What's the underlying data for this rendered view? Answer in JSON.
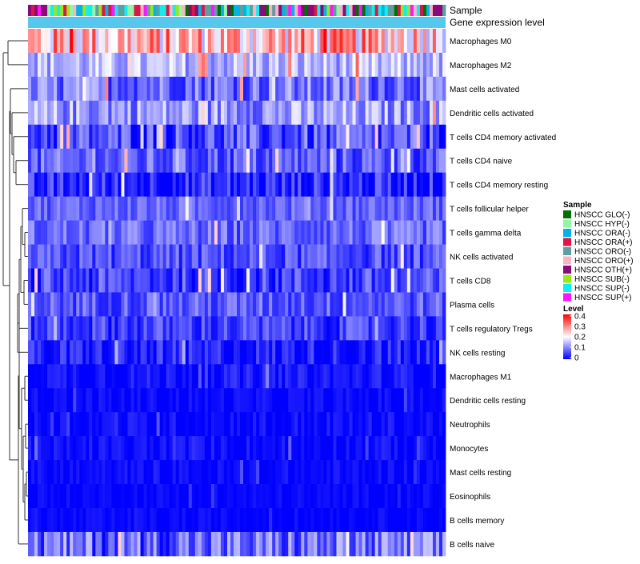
{
  "chart_data": {
    "type": "heatmap",
    "title": "",
    "annotation_tracks": [
      "Sample",
      "Gene expression level"
    ],
    "n_samples": 130,
    "rows": [
      {
        "label": "Macrophages M0",
        "base": 0.25,
        "noise": 0.12
      },
      {
        "label": "Macrophages M2",
        "base": 0.14,
        "noise": 0.06
      },
      {
        "label": "Mast cells activated",
        "base": 0.09,
        "noise": 0.07
      },
      {
        "label": "Dendritic cells activated",
        "base": 0.12,
        "noise": 0.07
      },
      {
        "label": "T cells CD4 memory activated",
        "base": 0.06,
        "noise": 0.07
      },
      {
        "label": "T cells CD4 naive",
        "base": 0.07,
        "noise": 0.06
      },
      {
        "label": "T cells CD4 memory resting",
        "base": 0.03,
        "noise": 0.06
      },
      {
        "label": "T cells follicular helper",
        "base": 0.08,
        "noise": 0.04
      },
      {
        "label": "T cells gamma delta",
        "base": 0.08,
        "noise": 0.05
      },
      {
        "label": "NK cells activated",
        "base": 0.06,
        "noise": 0.05
      },
      {
        "label": "T cells CD8",
        "base": 0.05,
        "noise": 0.06
      },
      {
        "label": "Plasma cells",
        "base": 0.07,
        "noise": 0.05
      },
      {
        "label": "T cells regulatory  Tregs",
        "base": 0.05,
        "noise": 0.05
      },
      {
        "label": "NK cells resting",
        "base": 0.02,
        "noise": 0.05
      },
      {
        "label": "Macrophages M1",
        "base": 0.015,
        "noise": 0.03
      },
      {
        "label": "Dendritic cells resting",
        "base": 0.005,
        "noise": 0.02
      },
      {
        "label": "Neutrophils",
        "base": 0.008,
        "noise": 0.025
      },
      {
        "label": "Monocytes",
        "base": 0.008,
        "noise": 0.025
      },
      {
        "label": "Mast cells resting",
        "base": 0.006,
        "noise": 0.02
      },
      {
        "label": "Eosinophils",
        "base": 0.004,
        "noise": 0.015
      },
      {
        "label": "B cells memory",
        "base": 0.004,
        "noise": 0.015
      },
      {
        "label": "B cells naive",
        "base": 0.08,
        "noise": 0.08
      }
    ],
    "legend_sample": {
      "title": "Sample",
      "entries": [
        {
          "label": "HNSCC GLO(-)",
          "color": "#007000"
        },
        {
          "label": "HNSCC HYP(-)",
          "color": "#93f5a6"
        },
        {
          "label": "HNSCC ORA(-)",
          "color": "#00b4e6"
        },
        {
          "label": "HNSCC ORA(+)",
          "color": "#e0144a"
        },
        {
          "label": "HNSCC ORO(-)",
          "color": "#5f9ea0"
        },
        {
          "label": "HNSCC ORO(+)",
          "color": "#f9b4c4"
        },
        {
          "label": "HNSCC OTH(+)",
          "color": "#8b0a7a"
        },
        {
          "label": "HNSCC SUB(-)",
          "color": "#9ae61c"
        },
        {
          "label": "HNSCC SUP(-)",
          "color": "#12eef0"
        },
        {
          "label": "HNSCC SUP(+)",
          "color": "#ff14ff"
        }
      ]
    },
    "legend_level": {
      "title": "Level",
      "ticks": [
        "0.4",
        "0.3",
        "0.2",
        "0.1",
        "0"
      ],
      "range": [
        0,
        0.4
      ],
      "colors": {
        "low": "#0000ff",
        "mid": "#ffffff",
        "high": "#ff0000"
      }
    },
    "expression_track_color": "#56c8ee"
  }
}
